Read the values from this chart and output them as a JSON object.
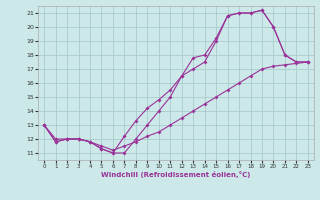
{
  "xlabel": "Windchill (Refroidissement éolien,°C)",
  "background_color": "#cce8e8",
  "grid_color": "#aacccc",
  "line_color": "#993399",
  "xlim": [
    -0.5,
    23.5
  ],
  "ylim": [
    10.5,
    21.5
  ],
  "xticks": [
    0,
    1,
    2,
    3,
    4,
    5,
    6,
    7,
    8,
    9,
    10,
    11,
    12,
    13,
    14,
    15,
    16,
    17,
    18,
    19,
    20,
    21,
    22,
    23
  ],
  "yticks": [
    11,
    12,
    13,
    14,
    15,
    16,
    17,
    18,
    19,
    20,
    21
  ],
  "series1": [
    [
      0,
      13.0
    ],
    [
      1,
      11.8
    ],
    [
      2,
      12.0
    ],
    [
      3,
      12.0
    ],
    [
      4,
      11.8
    ],
    [
      5,
      11.3
    ],
    [
      6,
      11.0
    ],
    [
      7,
      12.2
    ],
    [
      8,
      13.3
    ],
    [
      9,
      14.2
    ],
    [
      10,
      14.8
    ],
    [
      11,
      15.5
    ],
    [
      12,
      16.5
    ],
    [
      13,
      17.8
    ],
    [
      14,
      18.0
    ],
    [
      15,
      19.2
    ],
    [
      16,
      20.8
    ],
    [
      17,
      21.0
    ],
    [
      18,
      21.0
    ],
    [
      19,
      21.2
    ],
    [
      20,
      20.0
    ],
    [
      21,
      18.0
    ],
    [
      22,
      17.5
    ],
    [
      23,
      17.5
    ]
  ],
  "series2": [
    [
      0,
      13.0
    ],
    [
      1,
      11.8
    ],
    [
      2,
      12.0
    ],
    [
      3,
      12.0
    ],
    [
      4,
      11.8
    ],
    [
      5,
      11.3
    ],
    [
      6,
      11.0
    ],
    [
      7,
      11.0
    ],
    [
      8,
      12.0
    ],
    [
      9,
      13.0
    ],
    [
      10,
      14.0
    ],
    [
      11,
      15.0
    ],
    [
      12,
      16.5
    ],
    [
      13,
      17.0
    ],
    [
      14,
      17.5
    ],
    [
      15,
      19.0
    ],
    [
      16,
      20.8
    ],
    [
      17,
      21.0
    ],
    [
      18,
      21.0
    ],
    [
      19,
      21.2
    ],
    [
      20,
      20.0
    ],
    [
      21,
      18.0
    ],
    [
      22,
      17.5
    ],
    [
      23,
      17.5
    ]
  ],
  "series3": [
    [
      0,
      13.0
    ],
    [
      1,
      12.0
    ],
    [
      2,
      12.0
    ],
    [
      3,
      12.0
    ],
    [
      4,
      11.8
    ],
    [
      5,
      11.5
    ],
    [
      6,
      11.2
    ],
    [
      7,
      11.5
    ],
    [
      8,
      11.8
    ],
    [
      9,
      12.2
    ],
    [
      10,
      12.5
    ],
    [
      11,
      13.0
    ],
    [
      12,
      13.5
    ],
    [
      13,
      14.0
    ],
    [
      14,
      14.5
    ],
    [
      15,
      15.0
    ],
    [
      16,
      15.5
    ],
    [
      17,
      16.0
    ],
    [
      18,
      16.5
    ],
    [
      19,
      17.0
    ],
    [
      20,
      17.2
    ],
    [
      21,
      17.3
    ],
    [
      22,
      17.4
    ],
    [
      23,
      17.5
    ]
  ]
}
